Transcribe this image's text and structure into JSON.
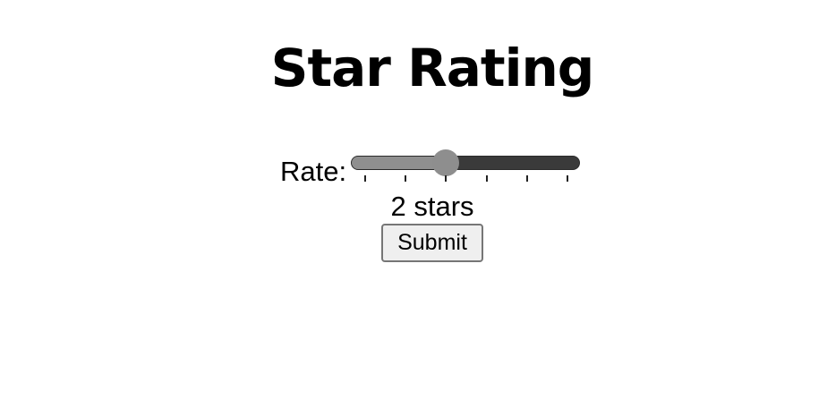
{
  "page": {
    "title": "Star Rating"
  },
  "rating": {
    "label": "Rate:",
    "value": 2,
    "min": 0,
    "max": 5,
    "value_text": "2 stars"
  },
  "form": {
    "submit_label": "Submit"
  },
  "colors": {
    "track_filled": "#8f8f8f",
    "track_empty": "#3a3a3a",
    "thumb": "#8e8e8e",
    "button_bg": "#efefef",
    "button_border": "#767676"
  }
}
